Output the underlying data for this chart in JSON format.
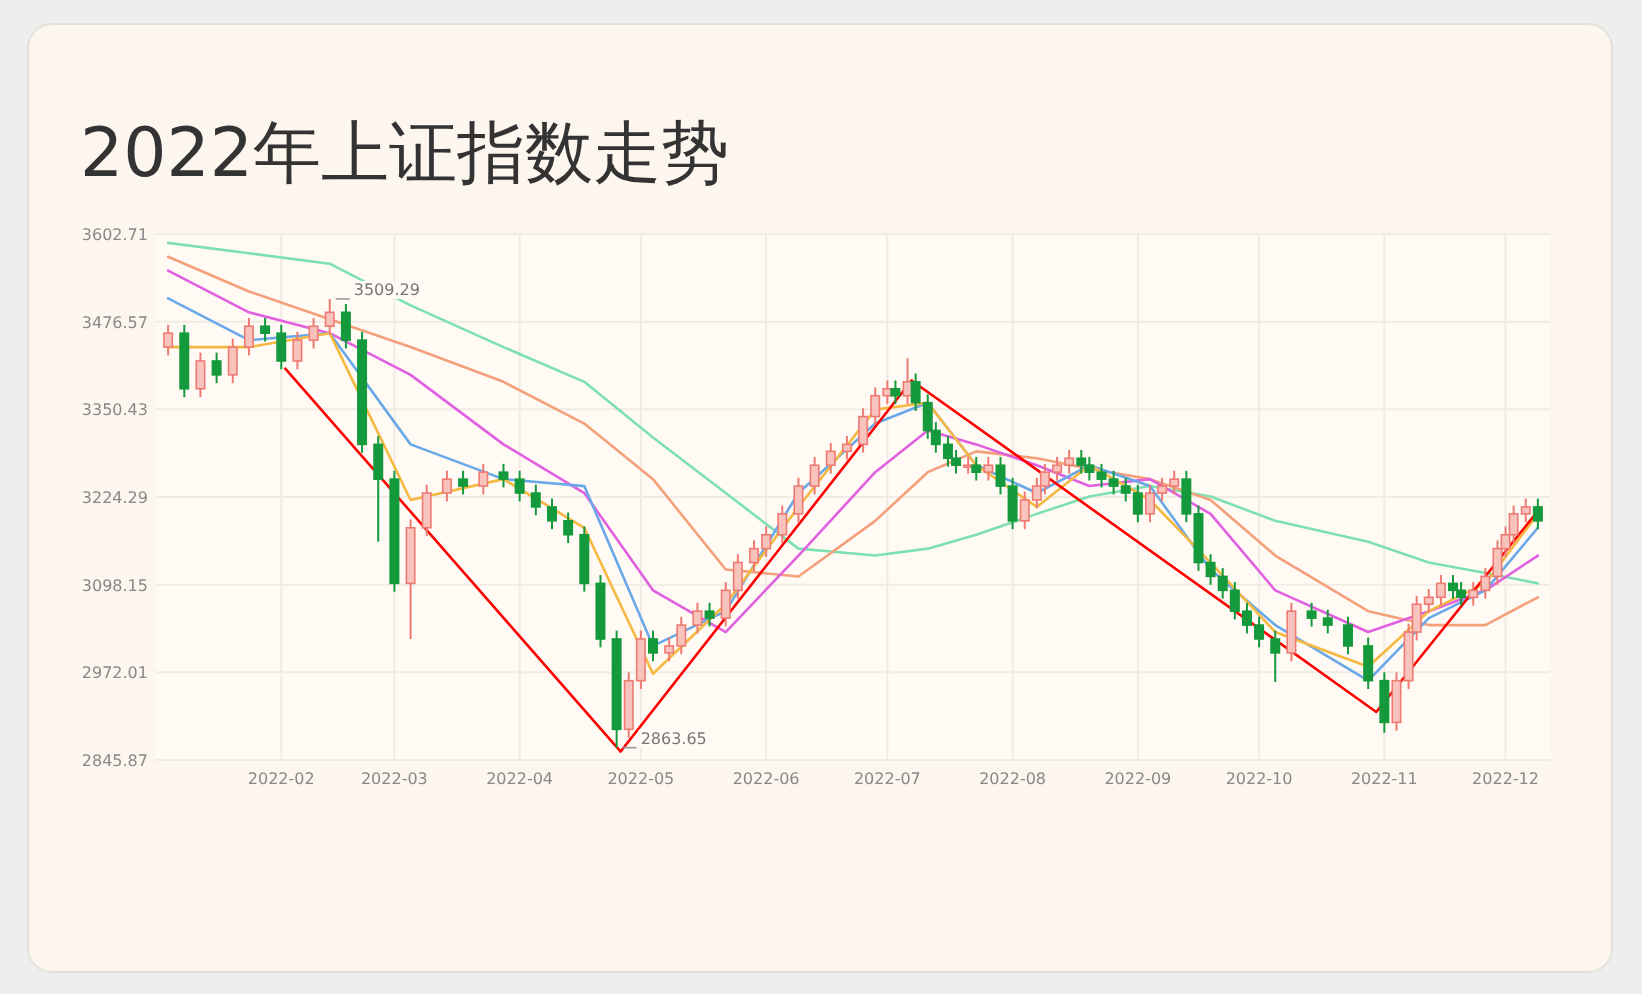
{
  "chart_data": {
    "type": "candlestick",
    "title": "2022年上证指数走势",
    "x": [
      "2022-01-04",
      "2022-01-08",
      "2022-01-12",
      "2022-01-16",
      "2022-01-20",
      "2022-01-24",
      "2022-01-28",
      "2022-02-01",
      "2022-02-05",
      "2022-02-09",
      "2022-02-13",
      "2022-02-17",
      "2022-02-21",
      "2022-02-25",
      "2022-03-01",
      "2022-03-05",
      "2022-03-09",
      "2022-03-14",
      "2022-03-18",
      "2022-03-23",
      "2022-03-28",
      "2022-04-01",
      "2022-04-05",
      "2022-04-09",
      "2022-04-13",
      "2022-04-17",
      "2022-04-21",
      "2022-04-25",
      "2022-04-28",
      "2022-05-01",
      "2022-05-04",
      "2022-05-08",
      "2022-05-11",
      "2022-05-15",
      "2022-05-18",
      "2022-05-22",
      "2022-05-25",
      "2022-05-29",
      "2022-06-01",
      "2022-06-05",
      "2022-06-09",
      "2022-06-13",
      "2022-06-17",
      "2022-06-21",
      "2022-06-25",
      "2022-06-28",
      "2022-07-01",
      "2022-07-03",
      "2022-07-06",
      "2022-07-08",
      "2022-07-11",
      "2022-07-13",
      "2022-07-16",
      "2022-07-18",
      "2022-07-21",
      "2022-07-23",
      "2022-07-26",
      "2022-07-29",
      "2022-08-01",
      "2022-08-04",
      "2022-08-07",
      "2022-08-09",
      "2022-08-12",
      "2022-08-15",
      "2022-08-18",
      "2022-08-20",
      "2022-08-23",
      "2022-08-26",
      "2022-08-29",
      "2022-09-01",
      "2022-09-04",
      "2022-09-07",
      "2022-09-10",
      "2022-09-13",
      "2022-09-16",
      "2022-09-19",
      "2022-09-22",
      "2022-09-25",
      "2022-09-28",
      "2022-10-01",
      "2022-10-05",
      "2022-10-09",
      "2022-10-14",
      "2022-10-18",
      "2022-10-23",
      "2022-10-28",
      "2022-11-01",
      "2022-11-04",
      "2022-11-07",
      "2022-11-09",
      "2022-11-12",
      "2022-11-15",
      "2022-11-18",
      "2022-11-20",
      "2022-11-23",
      "2022-11-26",
      "2022-11-29",
      "2022-12-01",
      "2022-12-03",
      "2022-12-06",
      "2022-12-09"
    ],
    "ohlc": [
      [
        3440,
        3472,
        3428,
        3460
      ],
      [
        3460,
        3472,
        3368,
        3380
      ],
      [
        3380,
        3432,
        3368,
        3420
      ],
      [
        3420,
        3432,
        3388,
        3400
      ],
      [
        3400,
        3452,
        3388,
        3440
      ],
      [
        3440,
        3482,
        3428,
        3470
      ],
      [
        3470,
        3482,
        3448,
        3460
      ],
      [
        3460,
        3472,
        3408,
        3420
      ],
      [
        3420,
        3462,
        3408,
        3450
      ],
      [
        3450,
        3482,
        3438,
        3470
      ],
      [
        3470,
        3509.29,
        3458,
        3490
      ],
      [
        3490,
        3502,
        3438,
        3450
      ],
      [
        3450,
        3462,
        3288,
        3300
      ],
      [
        3300,
        3312,
        3160,
        3250
      ],
      [
        3250,
        3262,
        3088,
        3100
      ],
      [
        3100,
        3192,
        3020,
        3180
      ],
      [
        3180,
        3242,
        3168,
        3230
      ],
      [
        3230,
        3262,
        3218,
        3250
      ],
      [
        3250,
        3262,
        3228,
        3240
      ],
      [
        3240,
        3272,
        3228,
        3260
      ],
      [
        3260,
        3272,
        3238,
        3250
      ],
      [
        3250,
        3262,
        3218,
        3230
      ],
      [
        3230,
        3242,
        3198,
        3210
      ],
      [
        3210,
        3222,
        3178,
        3190
      ],
      [
        3190,
        3202,
        3158,
        3170
      ],
      [
        3170,
        3182,
        3088,
        3100
      ],
      [
        3100,
        3112,
        3008,
        3020
      ],
      [
        3020,
        3032,
        2863.65,
        2890
      ],
      [
        2890,
        2972,
        2878,
        2960
      ],
      [
        2960,
        3032,
        2948,
        3020
      ],
      [
        3020,
        3032,
        2988,
        3000
      ],
      [
        3000,
        3022,
        2988,
        3010
      ],
      [
        3010,
        3052,
        2998,
        3040
      ],
      [
        3040,
        3072,
        3028,
        3060
      ],
      [
        3060,
        3072,
        3038,
        3050
      ],
      [
        3050,
        3102,
        3038,
        3090
      ],
      [
        3090,
        3142,
        3078,
        3130
      ],
      [
        3130,
        3162,
        3118,
        3150
      ],
      [
        3150,
        3182,
        3138,
        3170
      ],
      [
        3170,
        3212,
        3158,
        3200
      ],
      [
        3200,
        3252,
        3188,
        3240
      ],
      [
        3240,
        3282,
        3228,
        3270
      ],
      [
        3270,
        3302,
        3258,
        3290
      ],
      [
        3290,
        3312,
        3278,
        3300
      ],
      [
        3300,
        3352,
        3288,
        3340
      ],
      [
        3340,
        3382,
        3328,
        3370
      ],
      [
        3370,
        3392,
        3358,
        3380
      ],
      [
        3380,
        3392,
        3358,
        3370
      ],
      [
        3370,
        3424,
        3358,
        3390
      ],
      [
        3390,
        3402,
        3348,
        3360
      ],
      [
        3360,
        3372,
        3308,
        3320
      ],
      [
        3320,
        3332,
        3288,
        3300
      ],
      [
        3300,
        3312,
        3268,
        3280
      ],
      [
        3280,
        3292,
        3258,
        3270
      ],
      [
        3270,
        3282,
        3258,
        3270
      ],
      [
        3270,
        3282,
        3248,
        3260
      ],
      [
        3260,
        3282,
        3248,
        3270
      ],
      [
        3270,
        3282,
        3228,
        3240
      ],
      [
        3240,
        3252,
        3178,
        3190
      ],
      [
        3190,
        3232,
        3178,
        3220
      ],
      [
        3220,
        3252,
        3208,
        3240
      ],
      [
        3240,
        3272,
        3228,
        3260
      ],
      [
        3260,
        3282,
        3248,
        3270
      ],
      [
        3270,
        3292,
        3258,
        3280
      ],
      [
        3280,
        3292,
        3258,
        3270
      ],
      [
        3270,
        3282,
        3248,
        3260
      ],
      [
        3260,
        3272,
        3238,
        3250
      ],
      [
        3250,
        3262,
        3228,
        3240
      ],
      [
        3240,
        3252,
        3218,
        3230
      ],
      [
        3230,
        3242,
        3188,
        3200
      ],
      [
        3200,
        3242,
        3188,
        3230
      ],
      [
        3230,
        3252,
        3218,
        3240
      ],
      [
        3240,
        3262,
        3228,
        3250
      ],
      [
        3250,
        3262,
        3188,
        3200
      ],
      [
        3200,
        3212,
        3118,
        3130
      ],
      [
        3130,
        3142,
        3098,
        3110
      ],
      [
        3110,
        3122,
        3078,
        3090
      ],
      [
        3090,
        3102,
        3048,
        3060
      ],
      [
        3060,
        3072,
        3028,
        3040
      ],
      [
        3040,
        3052,
        3008,
        3020
      ],
      [
        3020,
        3032,
        2958,
        3000
      ],
      [
        3000,
        3072,
        2988,
        3060
      ],
      [
        3060,
        3072,
        3038,
        3050
      ],
      [
        3050,
        3062,
        3028,
        3040
      ],
      [
        3040,
        3052,
        2998,
        3010
      ],
      [
        3010,
        3022,
        2948,
        2960
      ],
      [
        2960,
        2972,
        2885,
        2900
      ],
      [
        2900,
        2972,
        2888,
        2960
      ],
      [
        2960,
        3042,
        2948,
        3030
      ],
      [
        3030,
        3082,
        3018,
        3070
      ],
      [
        3070,
        3092,
        3058,
        3080
      ],
      [
        3080,
        3112,
        3068,
        3100
      ],
      [
        3100,
        3112,
        3078,
        3090
      ],
      [
        3090,
        3102,
        3068,
        3080
      ],
      [
        3080,
        3102,
        3068,
        3090
      ],
      [
        3090,
        3122,
        3078,
        3110
      ],
      [
        3110,
        3162,
        3098,
        3150
      ],
      [
        3150,
        3182,
        3138,
        3170
      ],
      [
        3170,
        3212,
        3158,
        3200
      ],
      [
        3200,
        3222,
        3188,
        3210
      ],
      [
        3210,
        3222,
        3178,
        3190
      ]
    ],
    "series": [
      {
        "type": "line",
        "color": "#7ee0b0",
        "x": [
          "2022-01-04",
          "2022-01-24",
          "2022-02-13",
          "2022-03-05",
          "2022-03-28",
          "2022-04-17",
          "2022-05-04",
          "2022-05-22",
          "2022-06-09",
          "2022-06-28",
          "2022-07-11",
          "2022-07-23",
          "2022-08-07",
          "2022-08-20",
          "2022-09-04",
          "2022-09-19",
          "2022-10-05",
          "2022-10-28",
          "2022-11-12",
          "2022-11-26",
          "2022-12-09"
        ],
        "values": [
          3590,
          3575,
          3560,
          3500,
          3440,
          3390,
          3310,
          3230,
          3150,
          3140,
          3150,
          3170,
          3200,
          3225,
          3240,
          3225,
          3190,
          3160,
          3130,
          3115,
          3100
        ]
      },
      {
        "type": "line",
        "color": "#f4a07a",
        "x": [
          "2022-01-04",
          "2022-01-24",
          "2022-02-13",
          "2022-03-05",
          "2022-03-28",
          "2022-04-17",
          "2022-05-04",
          "2022-05-22",
          "2022-06-09",
          "2022-06-28",
          "2022-07-11",
          "2022-07-23",
          "2022-08-07",
          "2022-08-20",
          "2022-09-04",
          "2022-09-19",
          "2022-10-05",
          "2022-10-28",
          "2022-11-12",
          "2022-11-26",
          "2022-12-09"
        ],
        "values": [
          3570,
          3520,
          3480,
          3440,
          3390,
          3330,
          3250,
          3120,
          3110,
          3190,
          3260,
          3290,
          3280,
          3265,
          3250,
          3220,
          3140,
          3060,
          3040,
          3040,
          3080
        ]
      },
      {
        "type": "line",
        "color": "#e060e0",
        "x": [
          "2022-01-04",
          "2022-01-24",
          "2022-02-13",
          "2022-03-05",
          "2022-03-28",
          "2022-04-17",
          "2022-05-04",
          "2022-05-22",
          "2022-06-09",
          "2022-06-28",
          "2022-07-11",
          "2022-07-23",
          "2022-08-07",
          "2022-08-20",
          "2022-09-04",
          "2022-09-19",
          "2022-10-05",
          "2022-10-28",
          "2022-11-12",
          "2022-11-26",
          "2022-12-09"
        ],
        "values": [
          3550,
          3490,
          3460,
          3400,
          3300,
          3230,
          3090,
          3030,
          3140,
          3260,
          3320,
          3300,
          3270,
          3240,
          3250,
          3200,
          3090,
          3030,
          3060,
          3090,
          3140
        ]
      },
      {
        "type": "line",
        "color": "#6aa8e8",
        "x": [
          "2022-01-04",
          "2022-01-24",
          "2022-02-13",
          "2022-03-05",
          "2022-03-28",
          "2022-04-17",
          "2022-05-04",
          "2022-05-22",
          "2022-06-09",
          "2022-06-28",
          "2022-07-11",
          "2022-07-23",
          "2022-08-07",
          "2022-08-20",
          "2022-09-04",
          "2022-09-19",
          "2022-10-05",
          "2022-10-28",
          "2022-11-12",
          "2022-11-26",
          "2022-12-09"
        ],
        "values": [
          3510,
          3450,
          3460,
          3300,
          3250,
          3240,
          3010,
          3060,
          3230,
          3330,
          3360,
          3270,
          3230,
          3270,
          3240,
          3120,
          3040,
          2960,
          3050,
          3090,
          3180
        ]
      },
      {
        "type": "line",
        "color": "#f5b942",
        "x": [
          "2022-01-04",
          "2022-01-24",
          "2022-02-13",
          "2022-03-05",
          "2022-03-28",
          "2022-04-17",
          "2022-05-04",
          "2022-05-22",
          "2022-06-09",
          "2022-06-28",
          "2022-07-11",
          "2022-07-23",
          "2022-08-07",
          "2022-08-20",
          "2022-09-04",
          "2022-09-19",
          "2022-10-05",
          "2022-10-28",
          "2022-11-12",
          "2022-11-26",
          "2022-12-09"
        ],
        "values": [
          3440,
          3440,
          3460,
          3220,
          3250,
          3180,
          2970,
          3070,
          3210,
          3350,
          3360,
          3270,
          3210,
          3270,
          3220,
          3130,
          3030,
          2980,
          3060,
          3100,
          3200
        ]
      },
      {
        "type": "line",
        "color": "#ff0000",
        "x": [
          "2022-02-02",
          "2022-04-26",
          "2022-07-07",
          "2022-10-30",
          "2022-12-08"
        ],
        "values": [
          3409,
          2858,
          3392,
          2915,
          3197
        ]
      }
    ],
    "annotations": [
      {
        "text": "3509.29",
        "x": "2022-02-13",
        "y": 3509.29
      },
      {
        "text": "2863.65",
        "x": "2022-04-25",
        "y": 2863.65
      }
    ],
    "xlim": [
      "2022-01-01",
      "2022-12-12"
    ],
    "xticks": [
      "2022-02",
      "2022-03",
      "2022-04",
      "2022-05",
      "2022-06",
      "2022-07",
      "2022-08",
      "2022-09",
      "2022-10",
      "2022-11",
      "2022-12"
    ],
    "ylim": [
      2845.87,
      3602.71
    ],
    "yticks": [
      2845.87,
      2972.01,
      3098.15,
      3224.29,
      3350.43,
      3476.57,
      3602.71
    ],
    "grid": true
  }
}
